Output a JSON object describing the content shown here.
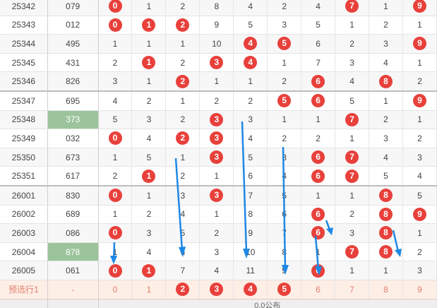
{
  "rows": [
    {
      "issue": "25342",
      "num": "079",
      "hl": false,
      "cells": [
        {
          "v": "0",
          "b": true
        },
        {
          "v": "1",
          "b": false
        },
        {
          "v": "2",
          "b": false
        },
        {
          "v": "8",
          "b": false
        },
        {
          "v": "4",
          "b": false
        },
        {
          "v": "2",
          "b": false
        },
        {
          "v": "4",
          "b": false
        },
        {
          "v": "7",
          "b": true
        },
        {
          "v": "1",
          "b": false
        },
        {
          "v": "9",
          "b": true
        }
      ]
    },
    {
      "issue": "25343",
      "num": "012",
      "hl": false,
      "cells": [
        {
          "v": "0",
          "b": true
        },
        {
          "v": "1",
          "b": true
        },
        {
          "v": "2",
          "b": true
        },
        {
          "v": "9",
          "b": false
        },
        {
          "v": "5",
          "b": false
        },
        {
          "v": "3",
          "b": false
        },
        {
          "v": "5",
          "b": false
        },
        {
          "v": "1",
          "b": false
        },
        {
          "v": "2",
          "b": false
        },
        {
          "v": "1",
          "b": false
        }
      ]
    },
    {
      "issue": "25344",
      "num": "495",
      "hl": false,
      "cells": [
        {
          "v": "1",
          "b": false
        },
        {
          "v": "1",
          "b": false
        },
        {
          "v": "1",
          "b": false
        },
        {
          "v": "10",
          "b": false
        },
        {
          "v": "4",
          "b": true
        },
        {
          "v": "5",
          "b": true
        },
        {
          "v": "6",
          "b": false
        },
        {
          "v": "2",
          "b": false
        },
        {
          "v": "3",
          "b": false
        },
        {
          "v": "9",
          "b": true
        }
      ]
    },
    {
      "issue": "25345",
      "num": "431",
      "hl": false,
      "cells": [
        {
          "v": "2",
          "b": false
        },
        {
          "v": "1",
          "b": true
        },
        {
          "v": "2",
          "b": false
        },
        {
          "v": "3",
          "b": true
        },
        {
          "v": "4",
          "b": true
        },
        {
          "v": "1",
          "b": false
        },
        {
          "v": "7",
          "b": false
        },
        {
          "v": "3",
          "b": false
        },
        {
          "v": "4",
          "b": false
        },
        {
          "v": "1",
          "b": false
        }
      ]
    },
    {
      "issue": "25346",
      "num": "826",
      "hl": false,
      "cells": [
        {
          "v": "3",
          "b": false
        },
        {
          "v": "1",
          "b": false
        },
        {
          "v": "2",
          "b": true
        },
        {
          "v": "1",
          "b": false
        },
        {
          "v": "1",
          "b": false
        },
        {
          "v": "2",
          "b": false
        },
        {
          "v": "6",
          "b": true
        },
        {
          "v": "4",
          "b": false
        },
        {
          "v": "8",
          "b": true
        },
        {
          "v": "2",
          "b": false
        }
      ]
    },
    {
      "issue": "25347",
      "num": "695",
      "hl": false,
      "cells": [
        {
          "v": "4",
          "b": false
        },
        {
          "v": "2",
          "b": false
        },
        {
          "v": "1",
          "b": false
        },
        {
          "v": "2",
          "b": false
        },
        {
          "v": "2",
          "b": false
        },
        {
          "v": "5",
          "b": true
        },
        {
          "v": "6",
          "b": true
        },
        {
          "v": "5",
          "b": false
        },
        {
          "v": "1",
          "b": false
        },
        {
          "v": "9",
          "b": true
        }
      ]
    },
    {
      "issue": "25348",
      "num": "373",
      "hl": true,
      "cells": [
        {
          "v": "5",
          "b": false
        },
        {
          "v": "3",
          "b": false
        },
        {
          "v": "2",
          "b": false
        },
        {
          "v": "3",
          "b": true
        },
        {
          "v": "3",
          "b": false
        },
        {
          "v": "1",
          "b": false
        },
        {
          "v": "1",
          "b": false
        },
        {
          "v": "7",
          "b": true
        },
        {
          "v": "2",
          "b": false
        },
        {
          "v": "1",
          "b": false
        }
      ]
    },
    {
      "issue": "25349",
      "num": "032",
      "hl": false,
      "cells": [
        {
          "v": "0",
          "b": true
        },
        {
          "v": "4",
          "b": false
        },
        {
          "v": "2",
          "b": true
        },
        {
          "v": "3",
          "b": true
        },
        {
          "v": "4",
          "b": false
        },
        {
          "v": "2",
          "b": false
        },
        {
          "v": "2",
          "b": false
        },
        {
          "v": "1",
          "b": false
        },
        {
          "v": "3",
          "b": false
        },
        {
          "v": "2",
          "b": false
        }
      ]
    },
    {
      "issue": "25350",
      "num": "673",
      "hl": false,
      "cells": [
        {
          "v": "1",
          "b": false
        },
        {
          "v": "5",
          "b": false
        },
        {
          "v": "1",
          "b": false
        },
        {
          "v": "3",
          "b": true
        },
        {
          "v": "5",
          "b": false
        },
        {
          "v": "3",
          "b": false
        },
        {
          "v": "6",
          "b": true
        },
        {
          "v": "7",
          "b": true
        },
        {
          "v": "4",
          "b": false
        },
        {
          "v": "3",
          "b": false
        }
      ]
    },
    {
      "issue": "25351",
      "num": "617",
      "hl": false,
      "cells": [
        {
          "v": "2",
          "b": false
        },
        {
          "v": "1",
          "b": true
        },
        {
          "v": "2",
          "b": false
        },
        {
          "v": "1",
          "b": false
        },
        {
          "v": "6",
          "b": false
        },
        {
          "v": "4",
          "b": false
        },
        {
          "v": "6",
          "b": true
        },
        {
          "v": "7",
          "b": true
        },
        {
          "v": "5",
          "b": false
        },
        {
          "v": "4",
          "b": false
        }
      ]
    },
    {
      "issue": "26001",
      "num": "830",
      "hl": false,
      "cells": [
        {
          "v": "0",
          "b": true
        },
        {
          "v": "1",
          "b": false
        },
        {
          "v": "3",
          "b": false
        },
        {
          "v": "3",
          "b": true
        },
        {
          "v": "7",
          "b": false
        },
        {
          "v": "5",
          "b": false
        },
        {
          "v": "1",
          "b": false
        },
        {
          "v": "1",
          "b": false
        },
        {
          "v": "8",
          "b": true
        },
        {
          "v": "5",
          "b": false
        }
      ]
    },
    {
      "issue": "26002",
      "num": "689",
      "hl": false,
      "cells": [
        {
          "v": "1",
          "b": false
        },
        {
          "v": "2",
          "b": false
        },
        {
          "v": "4",
          "b": false
        },
        {
          "v": "1",
          "b": false
        },
        {
          "v": "8",
          "b": false
        },
        {
          "v": "6",
          "b": false
        },
        {
          "v": "6",
          "b": true
        },
        {
          "v": "2",
          "b": false
        },
        {
          "v": "8",
          "b": true
        },
        {
          "v": "9",
          "b": true
        }
      ]
    },
    {
      "issue": "26003",
      "num": "086",
      "hl": false,
      "cells": [
        {
          "v": "0",
          "b": true
        },
        {
          "v": "3",
          "b": false
        },
        {
          "v": "5",
          "b": false
        },
        {
          "v": "2",
          "b": false
        },
        {
          "v": "9",
          "b": false
        },
        {
          "v": "7",
          "b": false
        },
        {
          "v": "6",
          "b": true
        },
        {
          "v": "3",
          "b": false
        },
        {
          "v": "8",
          "b": true
        },
        {
          "v": "1",
          "b": false
        }
      ]
    },
    {
      "issue": "26004",
      "num": "878",
      "hl": true,
      "cells": [
        {
          "v": "1",
          "b": false
        },
        {
          "v": "4",
          "b": false
        },
        {
          "v": "6",
          "b": false
        },
        {
          "v": "3",
          "b": false
        },
        {
          "v": "10",
          "b": false
        },
        {
          "v": "8",
          "b": false
        },
        {
          "v": "1",
          "b": false
        },
        {
          "v": "7",
          "b": true
        },
        {
          "v": "8",
          "b": true
        },
        {
          "v": "2",
          "b": false
        }
      ]
    },
    {
      "issue": "26005",
      "num": "061",
      "hl": false,
      "cells": [
        {
          "v": "0",
          "b": true
        },
        {
          "v": "1",
          "b": true
        },
        {
          "v": "7",
          "b": false
        },
        {
          "v": "4",
          "b": false
        },
        {
          "v": "11",
          "b": false
        },
        {
          "v": "9",
          "b": false
        },
        {
          "v": "6",
          "b": true
        },
        {
          "v": "1",
          "b": false
        },
        {
          "v": "1",
          "b": false
        },
        {
          "v": "3",
          "b": false
        }
      ]
    }
  ],
  "prediction": {
    "label": "预选行1",
    "num": "-",
    "cells": [
      {
        "v": "0",
        "b": false
      },
      {
        "v": "1",
        "b": false
      },
      {
        "v": "2",
        "b": true
      },
      {
        "v": "3",
        "b": true
      },
      {
        "v": "4",
        "b": true
      },
      {
        "v": "5",
        "b": true
      },
      {
        "v": "6",
        "b": false
      },
      {
        "v": "7",
        "b": false
      },
      {
        "v": "8",
        "b": false
      },
      {
        "v": "9",
        "b": false
      }
    ]
  },
  "footer": {
    "text": "0.0公布"
  },
  "colors": {
    "ball": "#e8403b",
    "highlight": "#9cc49c",
    "prediction_bg": "#fdeee6",
    "arrow": "#1e88e5"
  }
}
